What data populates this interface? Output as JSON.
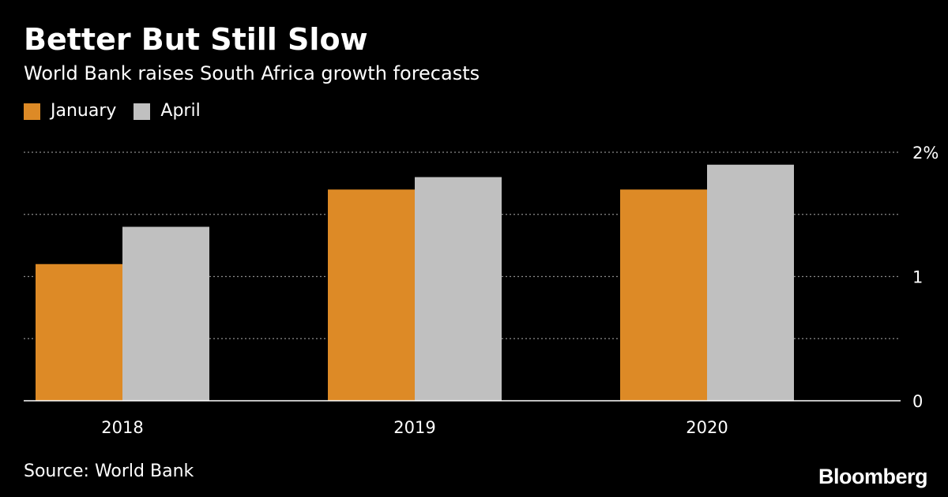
{
  "header": {
    "title": "Better But Still Slow",
    "subtitle": "World Bank raises South Africa growth forecasts"
  },
  "legend": [
    {
      "label": "January",
      "color": "#dd8a26"
    },
    {
      "label": "April",
      "color": "#c0c0c0"
    }
  ],
  "footer": {
    "source": "Source: World Bank",
    "brand": "Bloomberg"
  },
  "chart_data": {
    "type": "bar",
    "title": "Better But Still Slow",
    "subtitle": "World Bank raises South Africa growth forecasts",
    "xlabel": "",
    "ylabel": "",
    "categories": [
      "2018",
      "2019",
      "2020"
    ],
    "series": [
      {
        "name": "January",
        "color": "#dd8a26",
        "values": [
          1.1,
          1.7,
          1.7
        ]
      },
      {
        "name": "April",
        "color": "#c0c0c0",
        "values": [
          1.4,
          1.8,
          1.9
        ]
      }
    ],
    "ylim": [
      0,
      2
    ],
    "yticks": [
      {
        "value": 0,
        "label": "0"
      },
      {
        "value": 0.5,
        "label": ""
      },
      {
        "value": 1,
        "label": "1"
      },
      {
        "value": 1.5,
        "label": ""
      },
      {
        "value": 2,
        "label": "2%"
      }
    ],
    "grid": true,
    "legend_position": "top-left",
    "y_axis_position": "right"
  }
}
